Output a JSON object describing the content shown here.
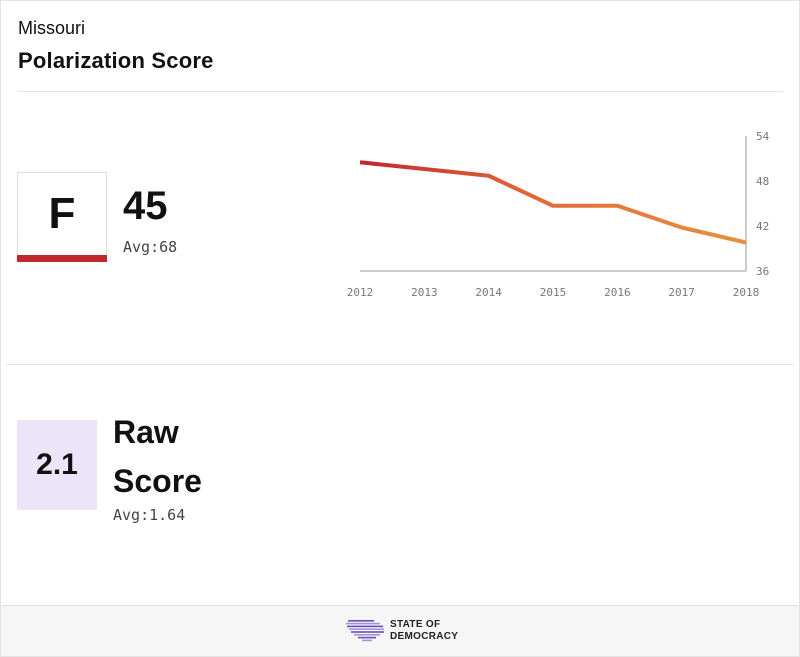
{
  "header": {
    "state": "Missouri",
    "metric": "Polarization Score"
  },
  "grade": {
    "letter": "F",
    "color": "#c1272d"
  },
  "score": {
    "value": "45",
    "avg": "Avg:68"
  },
  "raw": {
    "value": "2.1",
    "title": "Raw Score",
    "avg": "Avg:1.64",
    "box_color": "#ece5fa"
  },
  "footer": {
    "brand_line1": "STATE OF",
    "brand_line2": "DEMOCRACY",
    "logo_icon": "us-map-stripes-icon",
    "logo_color": "#6b4fb8"
  },
  "chart_data": {
    "type": "line",
    "x": [
      "2012",
      "2013",
      "2014",
      "2015",
      "2016",
      "2017",
      "2018"
    ],
    "y_ticks": [
      "54",
      "48",
      "42",
      "36"
    ],
    "ylim": [
      36,
      54
    ],
    "series": [
      {
        "values": [
          50.5,
          49.6,
          48.7,
          44.7,
          44.7,
          41.8,
          39.8
        ],
        "color_start": "#c1272d",
        "color_end": "#e8923d"
      }
    ],
    "y_axis_position": "right",
    "grid": false
  }
}
